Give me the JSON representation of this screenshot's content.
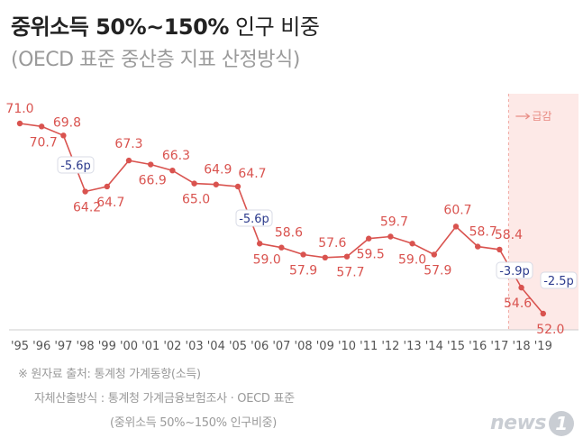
{
  "title": {
    "bold": "중위소득 50%~150%",
    "rest": " 인구 비중"
  },
  "subtitle": "(OECD 표준 중산층 지표 산정방식)",
  "chart_data": {
    "type": "line",
    "categories": [
      "'95",
      "'96",
      "'97",
      "'98",
      "'99",
      "'00",
      "'01",
      "'02",
      "'03",
      "'04",
      "'05",
      "'06",
      "'07",
      "'08",
      "'09",
      "'10",
      "'11",
      "'12",
      "'13",
      "'14",
      "'15",
      "'16",
      "'17",
      "'18",
      "'19"
    ],
    "values": [
      71.0,
      70.7,
      69.8,
      64.2,
      64.7,
      67.3,
      66.9,
      66.3,
      65.0,
      64.9,
      64.7,
      59.0,
      58.6,
      57.9,
      57.6,
      57.7,
      59.5,
      59.7,
      59.0,
      57.9,
      60.7,
      58.7,
      58.4,
      54.6,
      52.0
    ],
    "value_labels": [
      "71.0",
      "70.7",
      "69.8",
      "64.2",
      "64.7",
      "67.3",
      "66.9",
      "66.3",
      "65.0",
      "64.9",
      "64.7",
      "59.0",
      "58.6",
      "57.9",
      "57.6",
      "57.7",
      "59.5",
      "59.7",
      "59.0",
      "57.9",
      "60.7",
      "58.7",
      "58.4",
      "54.6",
      "52.0"
    ],
    "annotations": [
      {
        "text": "-5.6p",
        "between": [
          "'97",
          "'98"
        ]
      },
      {
        "text": "-5.6p",
        "between": [
          "'05",
          "'06"
        ]
      },
      {
        "text": "-3.9p",
        "between": [
          "'17",
          "'18"
        ]
      },
      {
        "text": "-2.5p",
        "between": [
          "'18",
          "'19"
        ]
      }
    ],
    "highlight": {
      "from": "'17",
      "to": "'19",
      "label": "급감"
    },
    "ylim": [
      50,
      73
    ],
    "line_color": "#d9534f",
    "annotation_color": "#2b3a8c",
    "highlight_color": "#fde9e7"
  },
  "footnotes": {
    "source": "※ 원자료 출처: 통계청 가계동향(소득)",
    "method": "자체산출방식 : 통계청 가계금융보험조사 · OECD 표준",
    "method_detail": "(중위소득 50%~150% 인구비중)"
  },
  "logo": {
    "text": "news",
    "mark": "1"
  }
}
